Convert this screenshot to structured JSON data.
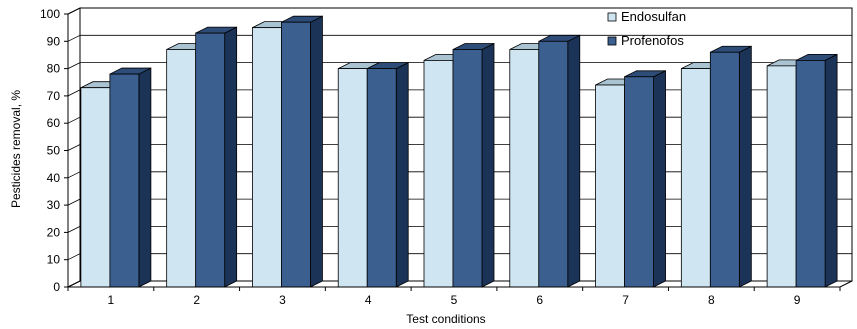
{
  "chart_data": {
    "type": "bar",
    "title": "",
    "xlabel": "Test conditions",
    "ylabel": "Pesticides removal, %",
    "categories": [
      "1",
      "2",
      "3",
      "4",
      "5",
      "6",
      "7",
      "8",
      "9"
    ],
    "series": [
      {
        "name": "Endosulfan",
        "values": [
          73,
          87,
          95,
          80,
          83,
          87,
          74,
          80,
          81
        ],
        "color": "#cfe6f2",
        "side": "#7fa6c0",
        "top": "#a9c3d3"
      },
      {
        "name": "Profenofos",
        "values": [
          78,
          93,
          97,
          80,
          87,
          90,
          77,
          86,
          83
        ],
        "color": "#3b5f8f",
        "side": "#1b3357",
        "top": "#2e4c78"
      }
    ],
    "ylim": [
      0,
      100
    ],
    "yticks": [
      "0",
      "10",
      "20",
      "30",
      "40",
      "50",
      "60",
      "70",
      "80",
      "90",
      "100"
    ],
    "grid": true,
    "legend_position": "top-right",
    "style": "3d-clustered-column"
  }
}
